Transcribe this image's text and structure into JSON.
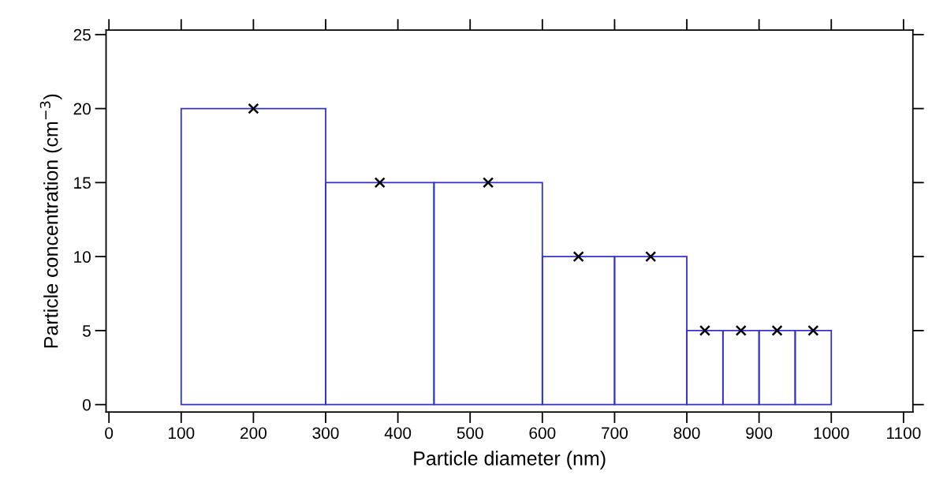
{
  "chart_data": {
    "type": "histogram",
    "xlabel": "Particle diameter (nm)",
    "ylabel": "Particle concentration (cm$^{−3}$)",
    "bins": [
      100,
      300,
      450,
      600,
      700,
      800,
      850,
      900,
      950,
      1000
    ],
    "values": [
      20,
      15,
      15,
      10,
      10,
      5,
      5,
      5,
      5
    ],
    "color": "#3333cc",
    "series": [
      {
        "type": "scatter",
        "x": [
          200,
          375,
          525,
          650,
          750,
          825,
          875,
          925,
          975
        ],
        "values": [
          20,
          15,
          15,
          10,
          10,
          5,
          5,
          5,
          5
        ],
        "color": "#000000",
        "marker": "cross"
      }
    ],
    "xlim": [
      -4,
      1113
    ],
    "ylim": [
      -0.5,
      25.3
    ],
    "xticks": [
      0,
      100,
      200,
      300,
      400,
      500,
      600,
      700,
      800,
      900,
      1000,
      1100
    ],
    "yticks": [
      0,
      5,
      10,
      15,
      20,
      25
    ],
    "grid": false,
    "legend": false
  }
}
